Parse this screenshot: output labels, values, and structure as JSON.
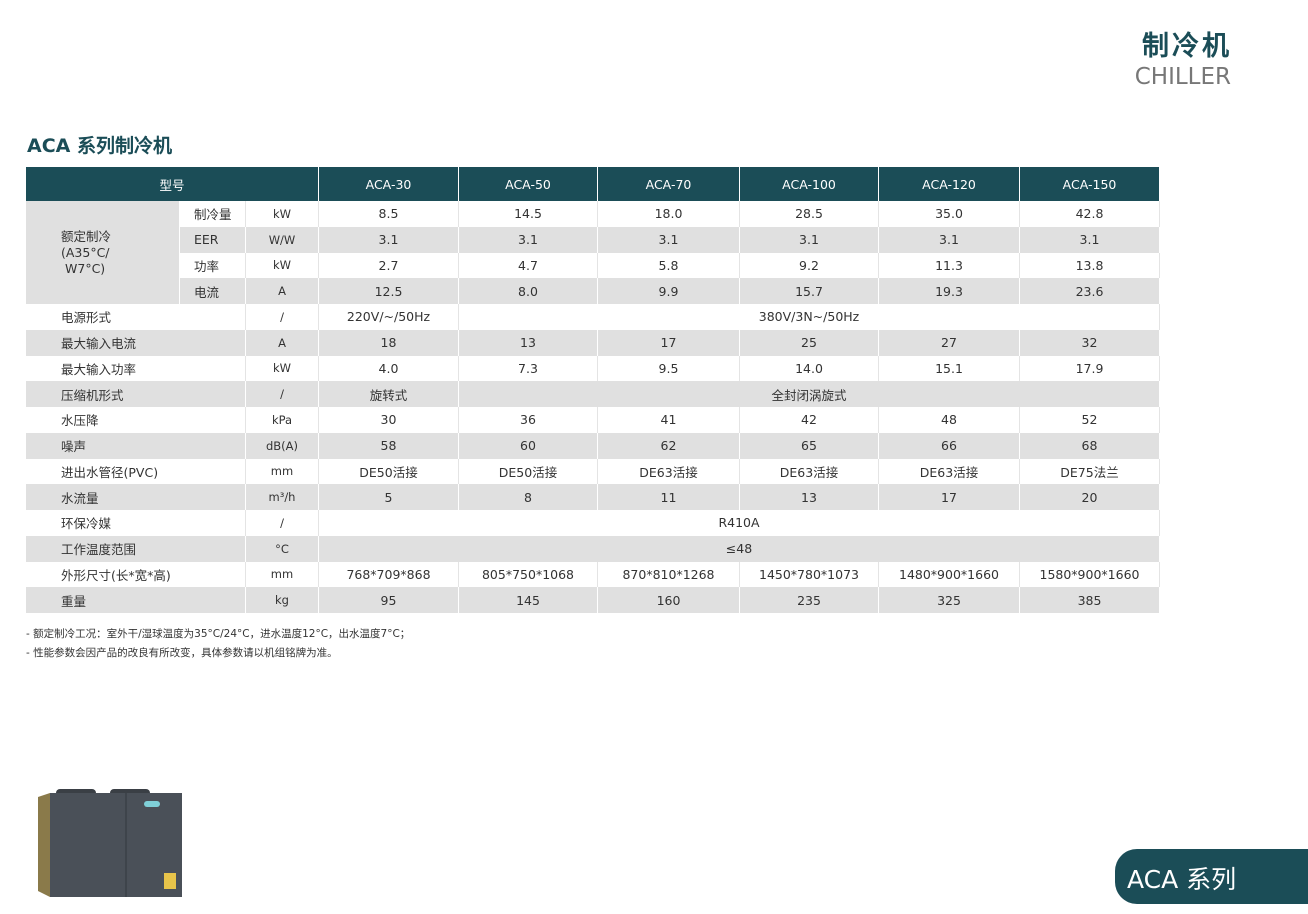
{
  "header": {
    "title": "制冷机",
    "subtitle": "CHILLER"
  },
  "section_title": "ACA 系列制冷机",
  "table": {
    "header": {
      "label": "型号",
      "models": [
        "ACA-30",
        "ACA-50",
        "ACA-70",
        "ACA-100",
        "ACA-120",
        "ACA-150"
      ]
    },
    "rated": {
      "lines": [
        "额定制冷",
        "(A35°C/",
        "W7°C)"
      ],
      "rows": [
        {
          "label": "制冷量",
          "unit": "kW",
          "values": [
            "8.5",
            "14.5",
            "18.0",
            "28.5",
            "35.0",
            "42.8"
          ]
        },
        {
          "label": "EER",
          "unit": "W/W",
          "values": [
            "3.1",
            "3.1",
            "3.1",
            "3.1",
            "3.1",
            "3.1"
          ]
        },
        {
          "label": "功率",
          "unit": "kW",
          "values": [
            "2.7",
            "4.7",
            "5.8",
            "9.2",
            "11.3",
            "13.8"
          ]
        },
        {
          "label": "电流",
          "unit": "A",
          "values": [
            "12.5",
            "8.0",
            "9.9",
            "15.7",
            "19.3",
            "23.6"
          ]
        }
      ]
    },
    "rows": [
      {
        "label": "电源形式",
        "unit": "/",
        "values": [
          "220V/~/50Hz",
          "380V/3N~/50Hz"
        ]
      },
      {
        "label": "最大输入电流",
        "unit": "A",
        "values": [
          "18",
          "13",
          "17",
          "25",
          "27",
          "32"
        ]
      },
      {
        "label": "最大输入功率",
        "unit": "kW",
        "values": [
          "4.0",
          "7.3",
          "9.5",
          "14.0",
          "15.1",
          "17.9"
        ]
      },
      {
        "label": "压缩机形式",
        "unit": "/",
        "values": [
          "旋转式",
          "全封闭涡旋式"
        ]
      },
      {
        "label": "水压降",
        "unit": "kPa",
        "values": [
          "30",
          "36",
          "41",
          "42",
          "48",
          "52"
        ]
      },
      {
        "label": "噪声",
        "unit": "dB(A)",
        "values": [
          "58",
          "60",
          "62",
          "65",
          "66",
          "68"
        ]
      },
      {
        "label": "进出水管径(PVC)",
        "unit": "mm",
        "values": [
          "DE50活接",
          "DE50活接",
          "DE63活接",
          "DE63活接",
          "DE63活接",
          "DE75法兰"
        ]
      },
      {
        "label": "水流量",
        "unit": "m³/h",
        "values": [
          "5",
          "8",
          "11",
          "13",
          "17",
          "20"
        ]
      },
      {
        "label": "环保冷媒",
        "unit": "/",
        "values": [
          "R410A"
        ]
      },
      {
        "label": "工作温度范围",
        "unit": "°C",
        "values": [
          "≤48"
        ]
      },
      {
        "label": "外形尺寸(长*宽*高)",
        "unit": "mm",
        "values": [
          "768*709*868",
          "805*750*1068",
          "870*810*1268",
          "1450*780*1073",
          "1480*900*1660",
          "1580*900*1660"
        ]
      },
      {
        "label": "重量",
        "unit": "kg",
        "values": [
          "95",
          "145",
          "160",
          "235",
          "325",
          "385"
        ]
      }
    ]
  },
  "notes": [
    "- 额定制冷工况：室外干/湿球温度为35°C/24°C，进水温度12°C，出水温度7°C；",
    "- 性能参数会因产品的改良有所改变，具体参数请以机组铭牌为准。"
  ],
  "badge": "ACA 系列"
}
